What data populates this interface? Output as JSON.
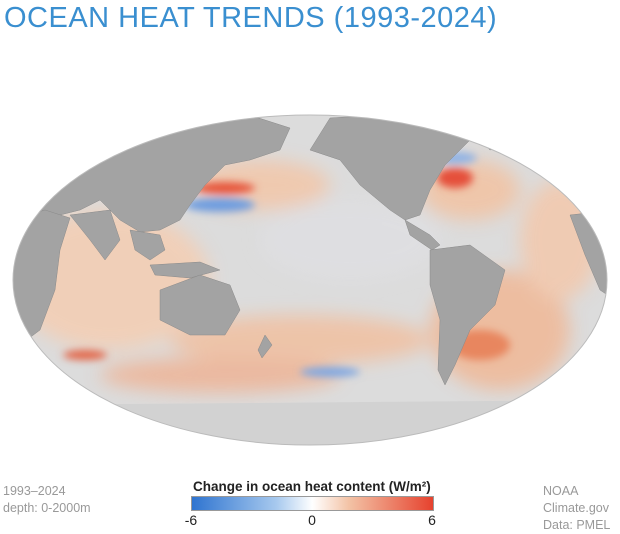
{
  "title": "OCEAN HEAT TRENDS (1993-2024)",
  "period": "1993–2024",
  "depth": "depth: 0-2000m",
  "credit": "NOAA Climate.gov",
  "source": "Data: PMEL",
  "legend": {
    "title": "Change in ocean heat content (W/m²)",
    "min": "-6",
    "mid": "0",
    "max": "6",
    "colors": {
      "low": "#2f74d0",
      "mid": "#ffffff",
      "high": "#e6422e"
    }
  },
  "map": {
    "projection": "Mollweide",
    "land_color": "#a3a3a3",
    "ocean_neutral": "#dcdcdc"
  }
}
